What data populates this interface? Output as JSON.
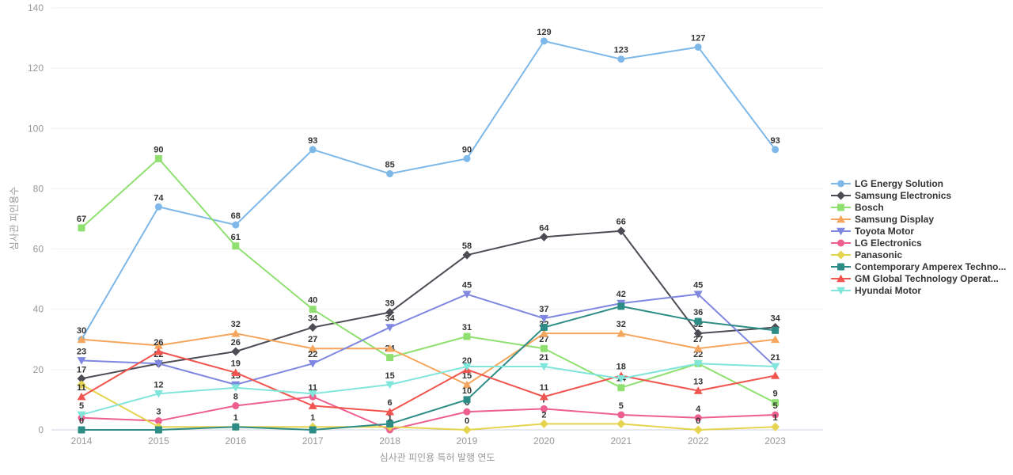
{
  "chart_data": {
    "type": "line",
    "x": [
      2014,
      2015,
      2016,
      2017,
      2018,
      2019,
      2020,
      2021,
      2022,
      2023
    ],
    "x_tick_labels": [
      "2014",
      "2015",
      "2016",
      "2017",
      "2018",
      "2019",
      "2020",
      "2021",
      "2022",
      "2023"
    ],
    "xlabel": "심사관 피인용 특허 발행 연도",
    "ylabel": "심사관 피인용수",
    "ylim": [
      0,
      140
    ],
    "ytick_step": 20,
    "ytick_labels": [
      "0",
      "20",
      "40",
      "60",
      "80",
      "100",
      "120",
      "140"
    ],
    "grid": "horizontal-only",
    "legend_position": "right",
    "series": [
      {
        "name": "LG Energy Solution",
        "color": "#7EB8E8",
        "marker": "circle",
        "values": [
          30,
          74,
          68,
          93,
          85,
          90,
          129,
          123,
          127,
          93
        ],
        "labels_visible": [
          true,
          true,
          true,
          true,
          true,
          true,
          true,
          true,
          true,
          true
        ]
      },
      {
        "name": "Samsung Electronics",
        "color": "#4C4C54",
        "marker": "diamond",
        "values": [
          17,
          22,
          26,
          34,
          39,
          58,
          64,
          66,
          32,
          34
        ],
        "labels_visible": [
          true,
          true,
          true,
          true,
          true,
          true,
          true,
          true,
          true,
          true
        ]
      },
      {
        "name": "Bosch",
        "color": "#8FE070",
        "marker": "square",
        "values": [
          67,
          90,
          61,
          40,
          24,
          31,
          27,
          14,
          22,
          9
        ],
        "labels_visible": [
          true,
          true,
          true,
          true,
          true,
          true,
          true,
          true,
          true,
          true
        ]
      },
      {
        "name": "Samsung Display",
        "color": "#F5A55C",
        "marker": "triangle",
        "values": [
          30,
          28,
          32,
          27,
          27,
          15,
          32,
          32,
          27,
          30
        ],
        "labels_visible": [
          false,
          false,
          true,
          true,
          false,
          true,
          true,
          true,
          true,
          false
        ]
      },
      {
        "name": "Toyota Motor",
        "color": "#7F87E0",
        "marker": "triangle-down",
        "values": [
          23,
          22,
          15,
          22,
          34,
          45,
          37,
          42,
          45,
          21
        ],
        "labels_visible": [
          true,
          false,
          true,
          true,
          true,
          true,
          true,
          true,
          true,
          true
        ]
      },
      {
        "name": "LG Electronics",
        "color": "#ED5F8F",
        "marker": "circle",
        "values": [
          4,
          3,
          8,
          11,
          0,
          6,
          7,
          5,
          4,
          5
        ],
        "labels_visible": [
          false,
          true,
          true,
          true,
          false,
          true,
          true,
          true,
          true,
          true
        ]
      },
      {
        "name": "Panasonic",
        "color": "#E5D44F",
        "marker": "diamond",
        "values": [
          15,
          1,
          1,
          1,
          1,
          0,
          2,
          2,
          0,
          1
        ],
        "labels_visible": [
          false,
          false,
          true,
          true,
          true,
          true,
          true,
          false,
          true,
          true
        ]
      },
      {
        "name": "Contemporary Amperex Techno...",
        "color": "#2D8C85",
        "marker": "square",
        "values": [
          0,
          0,
          1,
          0,
          2,
          10,
          34,
          41,
          36,
          33
        ],
        "labels_visible": [
          true,
          false,
          false,
          false,
          false,
          true,
          false,
          false,
          true,
          false
        ]
      },
      {
        "name": "GM Global Technology Operat...",
        "color": "#F0564F",
        "marker": "triangle",
        "values": [
          11,
          26,
          19,
          8,
          6,
          20,
          11,
          18,
          13,
          18
        ],
        "labels_visible": [
          true,
          true,
          true,
          false,
          true,
          true,
          true,
          true,
          true,
          false
        ]
      },
      {
        "name": "Hyundai Motor",
        "color": "#80E5DA",
        "marker": "triangle-down",
        "values": [
          5,
          12,
          14,
          12,
          15,
          21,
          21,
          17,
          22,
          21
        ],
        "labels_visible": [
          true,
          true,
          false,
          false,
          true,
          false,
          true,
          false,
          false,
          false
        ]
      }
    ],
    "style": {
      "grid_color": "#efefef",
      "axis_line_color": "#ccd4dd",
      "tick_color": "#999999",
      "data_label_color": "#333333",
      "background": "#ffffff"
    }
  }
}
